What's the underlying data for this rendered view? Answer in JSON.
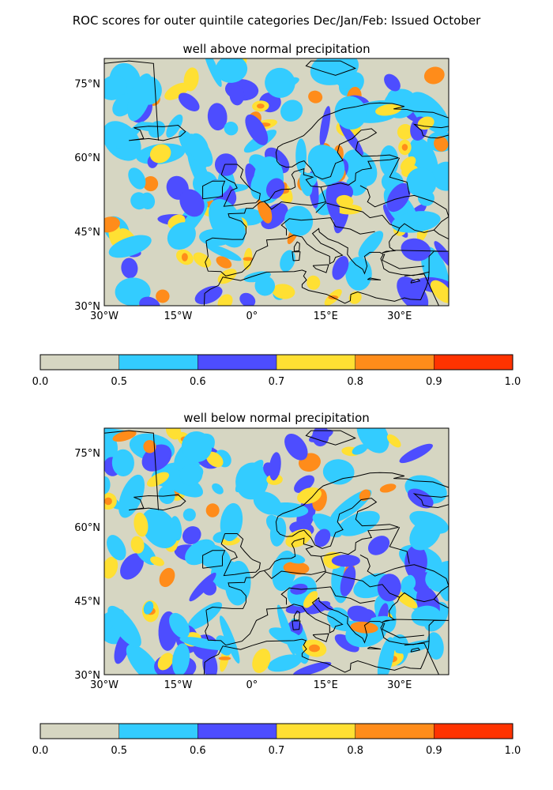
{
  "figure": {
    "title": "ROC scores for outer quintile categories Dec/Jan/Feb: Issued October"
  },
  "legend_colors": {
    "0.0-0.5": "#d6d6c2",
    "0.5-0.6": "#33ccff",
    "0.6-0.7": "#4d4dff",
    "0.7-0.8": "#ffe033",
    "0.8-0.9": "#ff8c1a",
    "0.9-1.0": "#ff3300"
  },
  "coastline_color": "#000000",
  "maps": [
    {
      "title": "well above normal precipitation",
      "lon_range": [
        -30,
        40
      ],
      "lat_range": [
        30,
        80
      ],
      "lat_ticks": [
        "30°N",
        "45°N",
        "60°N",
        "75°N"
      ],
      "lon_ticks": [
        "30°W",
        "15°W",
        "0°",
        "15°E",
        "30°E"
      ],
      "colorbar": {
        "bounds": [
          0.0,
          0.5,
          0.6,
          0.7,
          0.8,
          0.9,
          1.0
        ],
        "labels": [
          "0.0",
          "0.5",
          "0.6",
          "0.7",
          "0.8",
          "0.9",
          "1.0"
        ],
        "colors": [
          "#d6d6c2",
          "#33ccff",
          "#4d4dff",
          "#ffe033",
          "#ff8c1a",
          "#ff3300"
        ]
      }
    },
    {
      "title": "well below normal precipitation",
      "lon_range": [
        -30,
        40
      ],
      "lat_range": [
        30,
        80
      ],
      "lat_ticks": [
        "30°N",
        "45°N",
        "60°N",
        "75°N"
      ],
      "lon_ticks": [
        "30°W",
        "15°W",
        "0°",
        "15°E",
        "30°E"
      ],
      "colorbar": {
        "bounds": [
          0.0,
          0.5,
          0.6,
          0.7,
          0.8,
          0.9,
          1.0
        ],
        "labels": [
          "0.0",
          "0.5",
          "0.6",
          "0.7",
          "0.8",
          "0.9",
          "1.0"
        ],
        "colors": [
          "#d6d6c2",
          "#33ccff",
          "#4d4dff",
          "#ffe033",
          "#ff8c1a",
          "#ff3300"
        ]
      }
    }
  ]
}
